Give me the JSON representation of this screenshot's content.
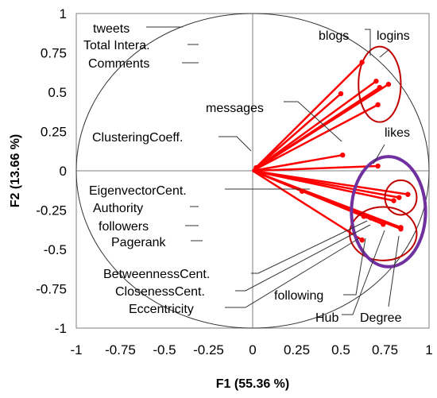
{
  "chart_data": {
    "type": "scatter",
    "subtype": "correlation-circle",
    "title": "",
    "xlabel": "F1 (55.36 %)",
    "ylabel": "F2 (13.66 %)",
    "xlim": [
      -1,
      1
    ],
    "ylim": [
      -1,
      1
    ],
    "xticks": [
      "-1",
      "-0.75",
      "-0.5",
      "-0.25",
      "0",
      "0.25",
      "0.5",
      "0.75",
      "1"
    ],
    "yticks": [
      "1",
      "0.75",
      "0.5",
      "0.25",
      "0",
      "-0.25",
      "-0.5",
      "-0.75",
      "-1"
    ],
    "grid": false,
    "vector_color": "#ff0000",
    "group_circle_color": "#c00000",
    "group_ellipse_color": "#7030a0",
    "points": [
      {
        "label": "tweets",
        "x": 0.7,
        "y": 0.57
      },
      {
        "label": "Total Intera.",
        "x": 0.77,
        "y": 0.55
      },
      {
        "label": "Comments",
        "x": 0.72,
        "y": 0.53
      },
      {
        "label": "blogs",
        "x": 0.62,
        "y": 0.69
      },
      {
        "label": "logins",
        "x": 0.71,
        "y": 0.42
      },
      {
        "label": "",
        "x": 0.5,
        "y": 0.49
      },
      {
        "label": "messages",
        "x": 0.51,
        "y": 0.1
      },
      {
        "label": "ClusteringCoeff.",
        "x": 0.02,
        "y": 0.02
      },
      {
        "label": "likes",
        "x": 0.71,
        "y": 0.03
      },
      {
        "label": "EigenvectorCent.",
        "x": 0.88,
        "y": -0.15
      },
      {
        "label": "Authority",
        "x": 0.83,
        "y": -0.17
      },
      {
        "label": "followers",
        "x": 0.8,
        "y": -0.19
      },
      {
        "label": "Pagerank",
        "x": 0.28,
        "y": -0.13
      },
      {
        "label": "BetweennessCent.",
        "x": 0.63,
        "y": -0.29
      },
      {
        "label": "ClosenessCent.",
        "x": 0.67,
        "y": -0.3
      },
      {
        "label": "Eccentricity",
        "x": 0.62,
        "y": -0.44
      },
      {
        "label": "following",
        "x": 0.74,
        "y": -0.34
      },
      {
        "label": "Hub",
        "x": 0.84,
        "y": -0.37
      },
      {
        "label": "Degree",
        "x": 0.84,
        "y": -0.36
      }
    ],
    "group_circles": [
      {
        "cx": 0.72,
        "cy": 0.55,
        "rx": 0.12,
        "ry": 0.24
      },
      {
        "cx": 0.84,
        "cy": -0.17,
        "rx": 0.09,
        "ry": 0.11
      },
      {
        "cx": 0.74,
        "cy": -0.4,
        "rx": 0.19,
        "ry": 0.17
      }
    ],
    "group_ellipses": [
      {
        "cx": 0.77,
        "cy": -0.26,
        "rx": 0.21,
        "ry": 0.35
      }
    ]
  }
}
